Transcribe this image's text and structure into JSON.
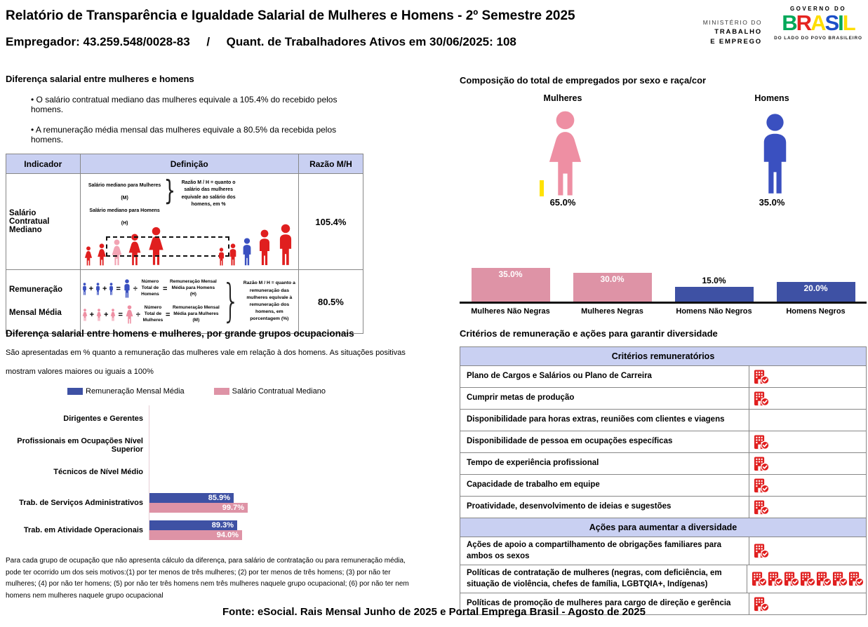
{
  "colors": {
    "accent_blue": "#3e51a4",
    "accent_pink": "#de93a6",
    "figure_pink": "#ee8fa3",
    "figure_blue": "#3a50c0",
    "icon_red": "#e01f1f",
    "diagram_pink": "#f2a3b3",
    "header_bg": "#c9d0f2",
    "highlight_yellow": "#ffe204",
    "brand_letter_colors": [
      "#00a859",
      "#e52521",
      "#fedd00",
      "#1d50c8",
      "#00a859",
      "#fedd00"
    ]
  },
  "header": {
    "title": "Relatório de Transparência e Igualdade Salarial de Mulheres e Homens - 2º Semestre 2025",
    "subtitle": "Empregador: 43.259.548/0028-83     /     Quant. de Trabalhadores Ativos em 30/06/2025: 108",
    "ministry_lines": [
      "MINISTÉRIO DO",
      "TRABALHO",
      "E EMPREGO"
    ],
    "gov": {
      "top": "GOVERNO DO",
      "brand": "BRASIL",
      "tagline": "DO LADO DO POVO BRASILEIRO"
    }
  },
  "salary_gap": {
    "title": "Diferença salarial entre mulheres e homens",
    "bullets": [
      "O salário contratual mediano das mulheres equivale a 105.4% do recebido pelos homens.",
      "A remuneração média mensal das mulheres equivale a 80.5% da recebida pelos homens."
    ],
    "table": {
      "col_headers": [
        "Indicador",
        "Definição",
        "Razão M/H"
      ],
      "rows": [
        {
          "indicator": "Salário Contratual Mediano",
          "ratio": "105.4%",
          "diagram": {
            "line_f": "Salário mediano para Mulheres (M)",
            "line_m": "Salário mediano para Homens (H)",
            "note": "Razão M / H = quanto o salário das mulheres equivale ao salário dos homens, em %"
          }
        },
        {
          "indicator": "Remuneração Mensal Média",
          "ratio": "80.5%",
          "diagram": {
            "men_num": "Número Total de Homens",
            "men_result": "Remuneração Mensal Média para Homens (H)",
            "women_num": "Número Total de Mulheres",
            "women_result": "Remuneração Mensal Média para Mulheres (M)",
            "note": "Razão M / H = quanto a remuneração das mulheres equivale à remuneração dos homens, em porcentagem (%)"
          }
        }
      ]
    }
  },
  "composition": {
    "title": "Composição do total de empregados por sexo e raça/cor",
    "female": {
      "label": "Mulheres",
      "pct": "65.0%"
    },
    "male": {
      "label": "Homens",
      "pct": "35.0%"
    }
  },
  "occupational": {
    "title": "Diferença salarial entre homens e mulheres, por grande grupos ocupacionais",
    "subtitle_line1": "São apresentadas em % quanto a remuneração das mulheres vale em relação à dos homens. As situações positivas",
    "subtitle_line2": "mostram valores maiores ou iguais a 100%",
    "footnote": "Para cada grupo de ocupação que não apresenta cálculo da diferença, para salário de contratação ou para remuneração média, pode ter ocorrido um dos seis motivos:(1) por ter menos de três mulheres; (2) por ter menos de três homens; (3) por não ter mulheres; (4) por não ter homens; (5) por não ter três homens nem três mulheres naquele grupo ocupacional; (6) por não ter nem homens nem mulheres naquele grupo ocupacional"
  },
  "criteria": {
    "title": "Critérios de remuneração e ações para garantir diversidade",
    "sections": [
      {
        "header": "Critérios remuneratórios",
        "rows": [
          {
            "label": "Plano de Cargos e Salários ou Plano de Carreira",
            "icon": "building-check-icon",
            "icon_count": 1
          },
          {
            "label": "Cumprir metas de produção",
            "icon": "building-check-icon",
            "icon_count": 1
          },
          {
            "label": "Disponibilidade para horas extras, reuniões com clientes e viagens",
            "icon": "building-check-icon",
            "icon_count": 0
          },
          {
            "label": "Disponibilidade de pessoa em ocupações específicas",
            "icon": "building-check-icon",
            "icon_count": 1
          },
          {
            "label": "Tempo de experiência profissional",
            "icon": "building-check-icon",
            "icon_count": 1
          },
          {
            "label": "Capacidade de trabalho em equipe",
            "icon": "building-check-icon",
            "icon_count": 1
          },
          {
            "label": "Proatividade, desenvolvimento de ideias e sugestões",
            "icon": "building-check-icon",
            "icon_count": 1
          }
        ]
      },
      {
        "header": "Ações para aumentar a diversidade",
        "rows": [
          {
            "label": "Ações de apoio a compartilhamento de obrigações familiares para ambos os sexos",
            "icon": "building-check-icon",
            "icon_count": 1
          },
          {
            "label": "Políticas de contratação de mulheres (negras, com deficiência, em situação de violência, chefes de família, LGBTQIA+, Indígenas)",
            "icon": "building-check-icon",
            "icon_count": 7
          },
          {
            "label": "Políticas de promoção de mulheres para cargo de direção e gerência",
            "icon": "building-check-icon",
            "icon_count": 1
          }
        ]
      }
    ]
  },
  "footer": {
    "text": "Fonte: eSocial. Rais Mensal Junho de 2025 e Portal Emprega Brasil - Agosto de 2025"
  },
  "chart_data": [
    {
      "type": "pie",
      "title": "Composição do total de empregados por sexo (pictograma)",
      "categories": [
        "Mulheres",
        "Homens"
      ],
      "values": [
        65.0,
        35.0
      ],
      "unit": "%"
    },
    {
      "type": "bar",
      "title": "Composição do total de empregados por sexo e raça/cor",
      "categories": [
        "Mulheres Não Negras",
        "Mulheres Negras",
        "Homens Não Negros",
        "Homens Negros"
      ],
      "values": [
        35.0,
        30.0,
        15.0,
        20.0
      ],
      "value_labels": [
        "35.0%",
        "30.0%",
        "15.0%",
        "20.0%"
      ],
      "colors": [
        "#de93a6",
        "#de93a6",
        "#3e51a4",
        "#3e51a4"
      ],
      "unit": "%",
      "ylim": [
        0,
        40
      ],
      "grid": false,
      "legend_position": "none"
    },
    {
      "type": "bar",
      "orientation": "horizontal",
      "title": "Diferença salarial entre homens e mulheres, por grande grupos ocupacionais",
      "categories": [
        "Dirigentes e Gerentes",
        "Profissionais em Ocupações Nível Superior",
        "Técnicos de Nível Médio",
        "Trab. de Serviços Administrativos",
        "Trab. em Atividade Operacionais"
      ],
      "series": [
        {
          "name": "Remuneração Mensal Média",
          "color": "#3e51a4",
          "values": [
            null,
            null,
            null,
            85.9,
            89.3
          ]
        },
        {
          "name": "Salário Contratual Mediano",
          "color": "#de93a6",
          "values": [
            null,
            null,
            null,
            99.7,
            94.0
          ]
        }
      ],
      "unit": "%",
      "xlim": [
        0,
        100
      ],
      "grid": false,
      "legend_position": "top"
    }
  ]
}
